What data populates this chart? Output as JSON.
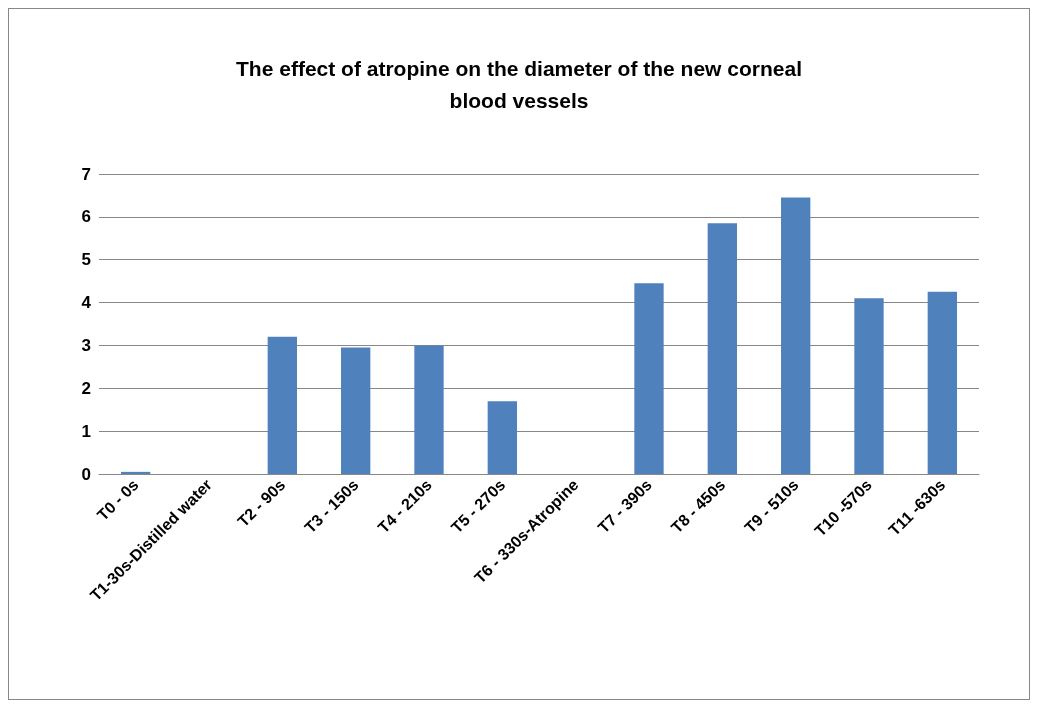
{
  "chart_data": {
    "type": "bar",
    "title": "The effect of atropine on the diameter of the new corneal\nblood vessels",
    "categories": [
      "T0 - 0s",
      "T1-30s-Distilled water",
      "T2 - 90s",
      "T3 - 150s",
      "T4 - 210s",
      "T5 - 270s",
      "T6 - 330s-Atropine",
      "T7 - 390s",
      "T8 - 450s",
      "T9 - 510s",
      "T10 -570s",
      "T11 -630s"
    ],
    "values": [
      0.05,
      0,
      3.2,
      2.95,
      3.0,
      1.7,
      0,
      4.45,
      5.85,
      6.45,
      4.1,
      4.25
    ],
    "color": "#4f81bd",
    "ylim": [
      0,
      7
    ],
    "yticks": [
      0,
      1,
      2,
      3,
      4,
      5,
      6,
      7
    ],
    "grid": "y"
  }
}
